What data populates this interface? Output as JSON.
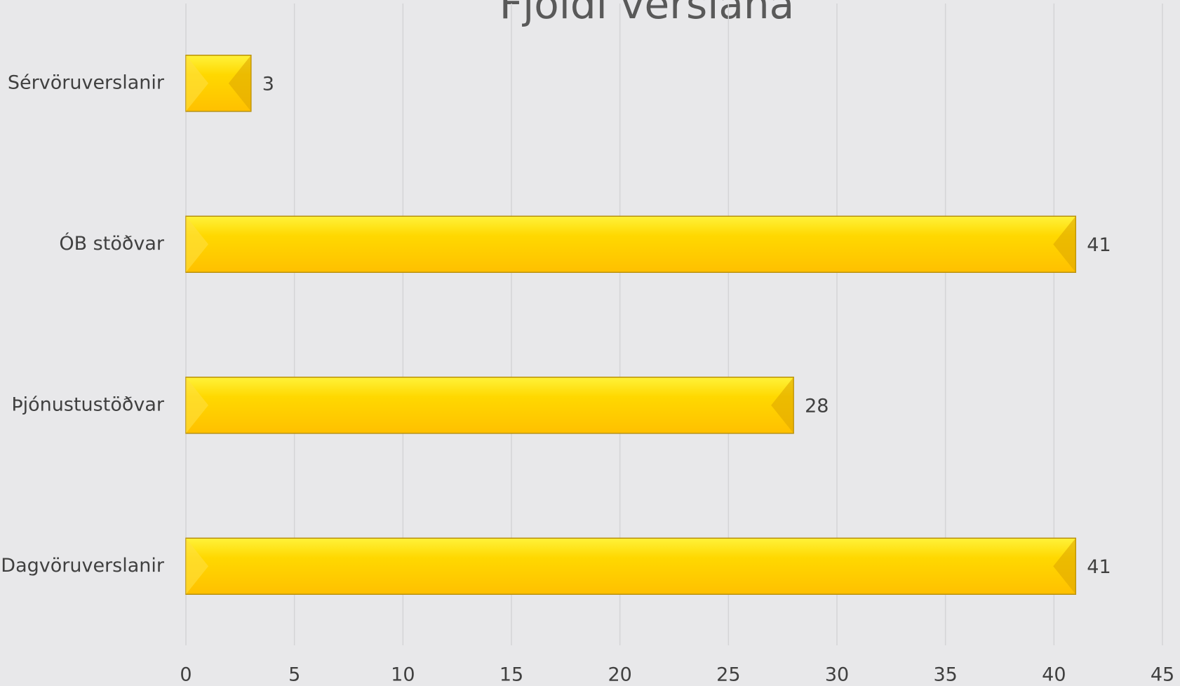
{
  "chart_data": {
    "type": "bar",
    "orientation": "horizontal",
    "title": "Fjöldi verslana",
    "categories": [
      "Sérvöruverslanir",
      "ÓB stöðvar",
      "Þjónustustöðvar",
      "Dagvöruverslanir"
    ],
    "values": [
      3,
      41,
      28,
      41
    ],
    "color": "#ffc000",
    "xlim": [
      0,
      45
    ],
    "xticks": [
      0,
      5,
      10,
      15,
      20,
      25,
      30,
      35,
      40,
      45
    ],
    "grid": true
  }
}
